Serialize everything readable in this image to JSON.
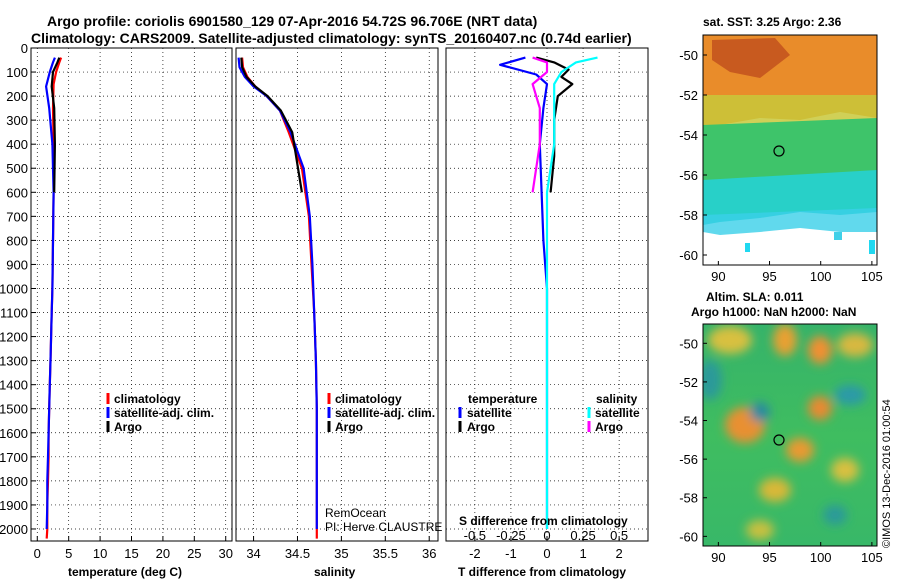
{
  "header": {
    "line1": "Argo profile: coriolis 6901580_129 07-Apr-2016 54.72S 96.706E (NRT data)",
    "line2": "Climatology: CARS2009. Satellite-adjusted climatology: synTS_20160407.nc (0.74d earlier)"
  },
  "colors": {
    "climatology": "#ff0000",
    "satellite": "#0000ff",
    "argo": "#000000",
    "sal_satellite": "#00ffff",
    "sal_argo": "#ff00ff"
  },
  "chart_data": [
    {
      "type": "line",
      "id": "temperature",
      "xlabel": "temperature (deg C)",
      "xlim": [
        -1,
        31
      ],
      "xticks": [
        0,
        5,
        10,
        15,
        20,
        25,
        30
      ],
      "ylim": [
        0,
        2050
      ],
      "yticks": [
        0,
        100,
        200,
        300,
        400,
        500,
        600,
        700,
        800,
        900,
        1000,
        1100,
        1200,
        1300,
        1400,
        1500,
        1600,
        1700,
        1800,
        1900,
        2000
      ],
      "grid": true,
      "legend": [
        "climatology",
        "satellite-adj. clim.",
        "Argo"
      ],
      "series": [
        {
          "name": "climatology",
          "color": "#ff0000",
          "x": [
            3.8,
            3.5,
            3.0,
            2.6,
            2.5,
            2.6,
            2.6,
            2.5,
            2.4,
            2.3,
            2.2,
            2.1,
            2.0,
            1.9,
            1.8,
            1.8,
            1.7,
            1.6,
            1.6,
            1.5
          ],
          "y": [
            40,
            60,
            100,
            150,
            250,
            400,
            600,
            800,
            1000,
            1100,
            1200,
            1300,
            1400,
            1500,
            1600,
            1700,
            1800,
            1900,
            2000,
            2040
          ]
        },
        {
          "name": "satellite-adj. clim.",
          "color": "#0000ff",
          "x": [
            2.8,
            2.5,
            2.0,
            1.4,
            1.9,
            2.4,
            2.6,
            2.5,
            2.4,
            2.3,
            2.2,
            2.1,
            2.0,
            1.9,
            1.8,
            1.7,
            1.6,
            1.6,
            1.5
          ],
          "y": [
            40,
            60,
            100,
            160,
            250,
            400,
            600,
            800,
            1000,
            1100,
            1200,
            1300,
            1400,
            1500,
            1600,
            1700,
            1800,
            1900,
            2000
          ]
        },
        {
          "name": "Argo",
          "color": "#000000",
          "x": [
            3.5,
            3.2,
            2.5,
            2.3,
            2.7,
            2.8,
            2.7
          ],
          "y": [
            40,
            60,
            100,
            160,
            250,
            400,
            600
          ]
        }
      ]
    },
    {
      "type": "line",
      "id": "salinity",
      "xlabel": "salinity",
      "xlim": [
        33.8,
        36.1
      ],
      "xticks": [
        34,
        34.5,
        35,
        35.5,
        36
      ],
      "ylim": [
        0,
        2050
      ],
      "grid": true,
      "legend": [
        "climatology",
        "satellite-adj. clim.",
        "Argo"
      ],
      "annotations": [
        "RemOcean",
        "PI: Herve CLAUSTRE"
      ],
      "series": [
        {
          "name": "climatology",
          "color": "#ff0000",
          "x": [
            33.87,
            33.88,
            33.93,
            34.02,
            34.15,
            34.3,
            34.4,
            34.55,
            34.63,
            34.66,
            34.69,
            34.71,
            34.72,
            34.72,
            34.72,
            34.72,
            34.72
          ],
          "y": [
            40,
            80,
            120,
            160,
            200,
            260,
            350,
            500,
            700,
            900,
            1100,
            1300,
            1500,
            1700,
            1900,
            2000,
            2040
          ]
        },
        {
          "name": "satellite-adj. clim.",
          "color": "#0000ff",
          "x": [
            33.83,
            33.84,
            33.9,
            34.0,
            34.15,
            34.3,
            34.42,
            34.57,
            34.64,
            34.67,
            34.69,
            34.71,
            34.72,
            34.72,
            34.72,
            34.72
          ],
          "y": [
            40,
            80,
            120,
            160,
            200,
            260,
            350,
            500,
            700,
            900,
            1100,
            1300,
            1500,
            1700,
            1900,
            2000
          ]
        },
        {
          "name": "Argo",
          "color": "#000000",
          "x": [
            33.86,
            33.87,
            33.92,
            34.02,
            34.16,
            34.31,
            34.44,
            34.55
          ],
          "y": [
            40,
            80,
            120,
            160,
            200,
            260,
            350,
            600
          ]
        }
      ]
    },
    {
      "type": "line",
      "id": "differences",
      "xlabel": "T difference from climatology",
      "xlim": [
        -2.8,
        2.8
      ],
      "xticks": [
        -2,
        -1,
        0,
        1,
        2
      ],
      "x2label": "S difference from climatology",
      "x2ticks": [
        "-0.5",
        "-0.25",
        "0",
        "0.25",
        "0.5"
      ],
      "ylim": [
        0,
        2050
      ],
      "grid": true,
      "legend_temperature": {
        "title": "temperature",
        "items": [
          "satellite",
          "Argo"
        ]
      },
      "legend_salinity": {
        "title": "salinity",
        "items": [
          "satellite",
          "Argo"
        ]
      },
      "series": [
        {
          "name": "T satellite",
          "color": "#0000ff",
          "x": [
            -0.6,
            -1.3,
            -0.3,
            0.0,
            -0.1,
            -0.2,
            -0.15,
            -0.1,
            0.0,
            0.0,
            0.0,
            0.0
          ],
          "y": [
            40,
            70,
            110,
            150,
            250,
            400,
            600,
            800,
            1000,
            1300,
            1600,
            2000
          ]
        },
        {
          "name": "T Argo",
          "color": "#000000",
          "x": [
            -0.3,
            0.2,
            0.6,
            0.4,
            0.7,
            0.3,
            0.2,
            0.2,
            0.1
          ],
          "y": [
            40,
            60,
            90,
            120,
            150,
            200,
            300,
            450,
            600
          ]
        },
        {
          "name": "S satellite",
          "color": "#00ffff",
          "x": [
            0.35,
            0.2,
            0.1,
            0.05,
            0.05,
            0.05,
            0.0,
            0.0,
            0.0,
            0.0
          ],
          "y": [
            40,
            60,
            100,
            150,
            250,
            400,
            600,
            1000,
            1500,
            2000
          ]
        },
        {
          "name": "S Argo",
          "color": "#ff00ff",
          "x": [
            -0.1,
            0.0,
            0.0,
            -0.1,
            -0.05,
            -0.05,
            -0.1
          ],
          "y": [
            40,
            60,
            100,
            150,
            250,
            400,
            600
          ]
        }
      ]
    },
    {
      "type": "heatmap",
      "id": "sst-map",
      "title": "sat. SST: 3.25 Argo: 2.36",
      "xticks": [
        90,
        95,
        100,
        105
      ],
      "yticks": [
        -50,
        -52,
        -54,
        -56,
        -58,
        -60
      ],
      "xlim": [
        88.5,
        105.5
      ],
      "ylim": [
        -60.5,
        -49
      ]
    },
    {
      "type": "heatmap",
      "id": "sla-map",
      "title": "Altim. SLA: 0.011",
      "subtitle": "Argo h1000: NaN h2000: NaN",
      "xticks": [
        90,
        95,
        100,
        105
      ],
      "yticks": [
        -50,
        -52,
        -54,
        -56,
        -58,
        -60
      ],
      "xlim": [
        88.5,
        105.5
      ],
      "ylim": [
        -60.5,
        -49
      ],
      "side_label": "©IMOS 13-Dec-2016 01:00:54"
    }
  ],
  "profile_position": {
    "lon": 96.706,
    "lat": -54.72
  }
}
